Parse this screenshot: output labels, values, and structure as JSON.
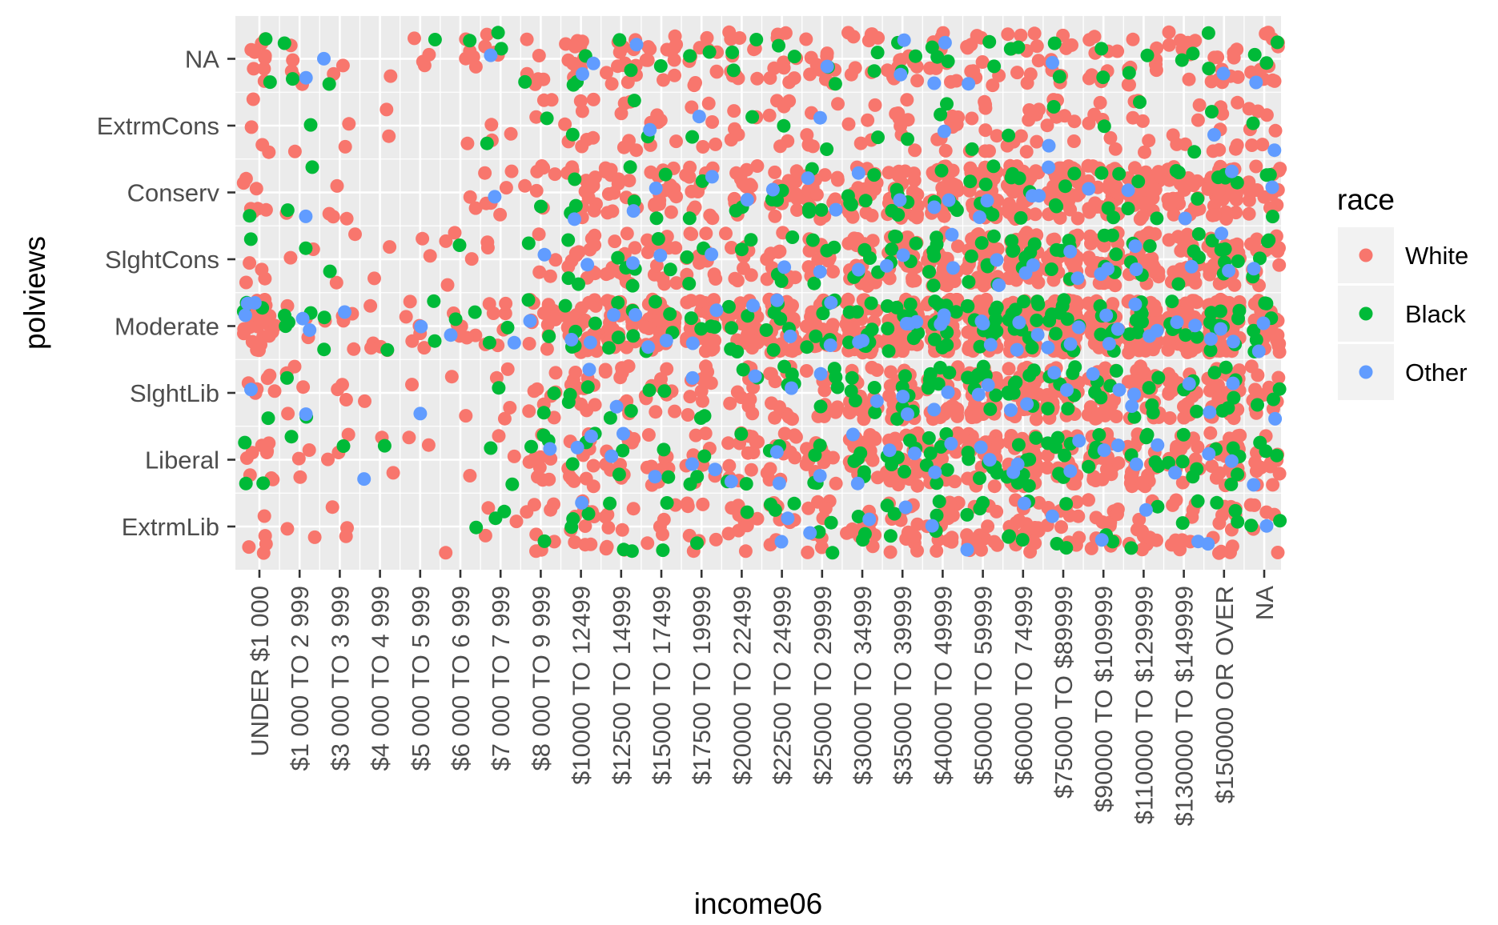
{
  "chart_data": {
    "type": "scatter",
    "jitter": true,
    "title": "",
    "xlabel": "income06",
    "ylabel": "polviews",
    "x_categories": [
      "UNDER $1 000",
      "$1 000 TO 2 999",
      "$3 000 TO 3 999",
      "$4 000 TO 4 999",
      "$5 000 TO 5 999",
      "$6 000 TO 6 999",
      "$7 000 TO 7 999",
      "$8 000 TO 9 999",
      "$10000 TO 12499",
      "$12500 TO 14999",
      "$15000 TO 17499",
      "$17500 TO 19999",
      "$20000 TO 22499",
      "$22500 TO 24999",
      "$25000 TO 29999",
      "$30000 TO 34999",
      "$35000 TO 39999",
      "$40000 TO 49999",
      "$50000 TO 59999",
      "$60000 TO 74999",
      "$75000 TO $89999",
      "$90000 TO $109999",
      "$110000 TO $129999",
      "$130000 TO $149999",
      "$150000 OR OVER",
      "NA"
    ],
    "y_categories": [
      "ExtrmLib",
      "Liberal",
      "SlghtLib",
      "Moderate",
      "SlghtCons",
      "Conserv",
      "ExtrmCons",
      "NA"
    ],
    "grid": true,
    "background": "#ebebeb",
    "legend": {
      "title": "race",
      "position": "right",
      "entries": [
        {
          "label": "White",
          "color": "#f8766d"
        },
        {
          "label": "Black",
          "color": "#00ba38"
        },
        {
          "label": "Other",
          "color": "#619cff"
        }
      ]
    },
    "series": [
      {
        "name": "White",
        "color": "#f8766d",
        "counts": [
          [
            5,
            9,
            6,
            28,
            4,
            7,
            4,
            9
          ],
          [
            2,
            3,
            4,
            3,
            2,
            1,
            1,
            5
          ],
          [
            3,
            3,
            3,
            5,
            2,
            4,
            2,
            2
          ],
          [
            0,
            2,
            1,
            5,
            2,
            0,
            2,
            1
          ],
          [
            0,
            2,
            1,
            6,
            2,
            0,
            0,
            4
          ],
          [
            1,
            1,
            2,
            6,
            4,
            2,
            1,
            5
          ],
          [
            3,
            2,
            4,
            7,
            2,
            6,
            3,
            4
          ],
          [
            8,
            10,
            8,
            14,
            4,
            7,
            3,
            6
          ],
          [
            10,
            12,
            11,
            28,
            12,
            15,
            8,
            12
          ],
          [
            8,
            10,
            9,
            30,
            13,
            14,
            6,
            13
          ],
          [
            5,
            10,
            10,
            32,
            13,
            15,
            6,
            12
          ],
          [
            7,
            9,
            9,
            26,
            12,
            12,
            5,
            11
          ],
          [
            9,
            13,
            11,
            30,
            11,
            12,
            6,
            11
          ],
          [
            8,
            12,
            12,
            34,
            10,
            15,
            6,
            10
          ],
          [
            9,
            14,
            11,
            33,
            13,
            15,
            6,
            10
          ],
          [
            13,
            21,
            19,
            42,
            18,
            24,
            5,
            9
          ],
          [
            15,
            22,
            24,
            50,
            26,
            28,
            8,
            10
          ],
          [
            15,
            22,
            23,
            52,
            26,
            31,
            8,
            11
          ],
          [
            16,
            26,
            28,
            56,
            34,
            36,
            9,
            11
          ],
          [
            17,
            33,
            31,
            61,
            38,
            40,
            9,
            10
          ],
          [
            14,
            25,
            25,
            53,
            34,
            38,
            8,
            9
          ],
          [
            12,
            23,
            23,
            46,
            30,
            33,
            6,
            9
          ],
          [
            12,
            22,
            21,
            45,
            29,
            30,
            6,
            9
          ],
          [
            10,
            17,
            18,
            40,
            23,
            27,
            5,
            8
          ],
          [
            12,
            26,
            26,
            55,
            31,
            35,
            8,
            11
          ],
          [
            6,
            12,
            12,
            26,
            14,
            16,
            7,
            12
          ]
        ]
      },
      {
        "name": "Black",
        "color": "#00ba38",
        "counts": [
          [
            0,
            3,
            1,
            3,
            1,
            1,
            0,
            2
          ],
          [
            0,
            1,
            2,
            4,
            1,
            2,
            1,
            2
          ],
          [
            0,
            1,
            0,
            2,
            1,
            0,
            0,
            1
          ],
          [
            0,
            1,
            0,
            1,
            0,
            0,
            0,
            0
          ],
          [
            0,
            0,
            0,
            2,
            0,
            0,
            0,
            1
          ],
          [
            1,
            0,
            0,
            2,
            1,
            0,
            0,
            1
          ],
          [
            2,
            2,
            1,
            2,
            0,
            0,
            1,
            2
          ],
          [
            1,
            3,
            2,
            2,
            1,
            1,
            1,
            1
          ],
          [
            3,
            3,
            3,
            5,
            3,
            3,
            1,
            3
          ],
          [
            3,
            2,
            2,
            5,
            4,
            2,
            1,
            2
          ],
          [
            2,
            2,
            2,
            4,
            2,
            2,
            1,
            1
          ],
          [
            1,
            3,
            2,
            4,
            3,
            2,
            1,
            2
          ],
          [
            1,
            3,
            2,
            5,
            2,
            2,
            1,
            3
          ],
          [
            3,
            2,
            4,
            6,
            3,
            3,
            1,
            2
          ],
          [
            3,
            4,
            4,
            8,
            4,
            4,
            1,
            2
          ],
          [
            3,
            5,
            5,
            9,
            5,
            5,
            1,
            2
          ],
          [
            3,
            6,
            6,
            9,
            6,
            5,
            1,
            3
          ],
          [
            4,
            7,
            7,
            11,
            6,
            5,
            2,
            3
          ],
          [
            3,
            8,
            8,
            12,
            7,
            6,
            1,
            2
          ],
          [
            4,
            8,
            8,
            12,
            7,
            5,
            1,
            2
          ],
          [
            3,
            7,
            7,
            10,
            6,
            4,
            1,
            2
          ],
          [
            2,
            5,
            5,
            8,
            5,
            4,
            1,
            2
          ],
          [
            2,
            5,
            5,
            7,
            4,
            3,
            1,
            2
          ],
          [
            2,
            5,
            4,
            7,
            4,
            3,
            1,
            2
          ],
          [
            3,
            6,
            6,
            10,
            6,
            4,
            1,
            2
          ],
          [
            2,
            3,
            3,
            6,
            4,
            3,
            1,
            3
          ]
        ]
      },
      {
        "name": "Other",
        "color": "#619cff",
        "counts": [
          [
            0,
            0,
            1,
            3,
            0,
            0,
            0,
            0
          ],
          [
            0,
            0,
            1,
            2,
            0,
            1,
            0,
            1
          ],
          [
            0,
            0,
            0,
            1,
            0,
            0,
            0,
            1
          ],
          [
            0,
            1,
            0,
            0,
            0,
            0,
            0,
            0
          ],
          [
            0,
            0,
            1,
            1,
            0,
            0,
            0,
            0
          ],
          [
            0,
            0,
            0,
            1,
            0,
            0,
            0,
            0
          ],
          [
            0,
            0,
            0,
            1,
            0,
            1,
            0,
            1
          ],
          [
            0,
            1,
            0,
            1,
            1,
            0,
            0,
            0
          ],
          [
            1,
            2,
            1,
            2,
            1,
            1,
            0,
            2
          ],
          [
            0,
            2,
            1,
            2,
            1,
            1,
            0,
            1
          ],
          [
            0,
            1,
            0,
            2,
            1,
            1,
            1,
            0
          ],
          [
            0,
            2,
            1,
            2,
            1,
            1,
            1,
            0
          ],
          [
            0,
            1,
            1,
            1,
            0,
            1,
            0,
            0
          ],
          [
            2,
            2,
            1,
            2,
            1,
            1,
            0,
            0
          ],
          [
            1,
            1,
            1,
            2,
            1,
            2,
            1,
            1
          ],
          [
            1,
            2,
            1,
            2,
            1,
            1,
            0,
            0
          ],
          [
            1,
            2,
            2,
            3,
            2,
            1,
            0,
            2
          ],
          [
            1,
            2,
            2,
            3,
            2,
            2,
            1,
            2
          ],
          [
            1,
            2,
            2,
            3,
            2,
            2,
            0,
            1
          ],
          [
            1,
            2,
            2,
            3,
            2,
            2,
            0,
            0
          ],
          [
            1,
            2,
            2,
            3,
            2,
            1,
            1,
            1
          ],
          [
            1,
            2,
            2,
            3,
            2,
            1,
            0,
            0
          ],
          [
            1,
            2,
            2,
            3,
            2,
            1,
            0,
            0
          ],
          [
            1,
            1,
            1,
            2,
            1,
            1,
            0,
            0
          ],
          [
            1,
            2,
            2,
            3,
            2,
            1,
            1,
            1
          ],
          [
            1,
            1,
            1,
            2,
            1,
            1,
            1,
            1
          ]
        ]
      }
    ]
  }
}
